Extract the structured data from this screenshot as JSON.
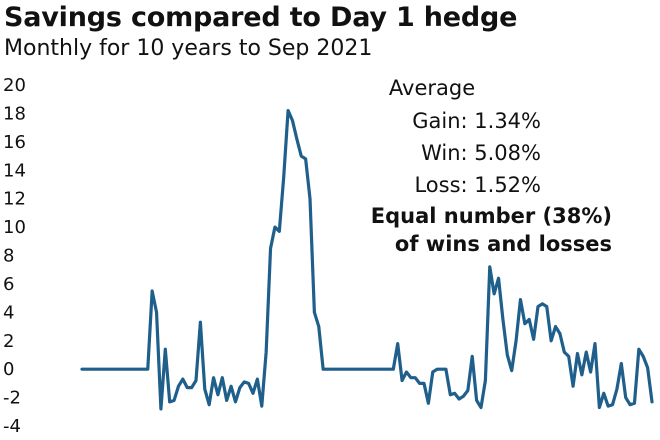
{
  "chart_data": {
    "type": "line",
    "title": "Savings compared to Day 1 hedge",
    "subtitle": "Monthly for 10 years to Sep 2021",
    "xlabel": "",
    "ylabel": "",
    "ylim": [
      -4,
      20
    ],
    "yticks": [
      "20",
      "18",
      "16",
      "14",
      "12",
      "10",
      "8",
      "6",
      "4",
      "2",
      "0",
      "-2",
      "-4"
    ],
    "grid": false,
    "line_color": "#1f5f8b",
    "annotations": {
      "heading": "Average",
      "lines": [
        "Gain: 1.34%",
        "Win: 5.08%",
        "Loss: 1.52%"
      ],
      "note": [
        "Equal number (38%)",
        "of wins and losses"
      ]
    },
    "series": [
      {
        "values": [
          0,
          0,
          0,
          0,
          0,
          0,
          0,
          0,
          0,
          0,
          0,
          0,
          0,
          0,
          0,
          0,
          5.5,
          4,
          -2.8,
          1.4,
          -2.3,
          -2.2,
          -1.2,
          -0.7,
          -1.3,
          -1.3,
          -0.8,
          3.3,
          -1.4,
          -2.5,
          -0.6,
          -1.8,
          -0.6,
          -2.2,
          -1.2,
          -2.3,
          -1.3,
          -0.9,
          -1,
          -1.7,
          -0.7,
          -2.6,
          1.2,
          8.5,
          10,
          9.7,
          13.5,
          18.2,
          17.5,
          16.2,
          15,
          14.8,
          12,
          4,
          3,
          0,
          0,
          0,
          0,
          0,
          0,
          0,
          0,
          0,
          0,
          0,
          0,
          0,
          0,
          0,
          0,
          0,
          1.8,
          -0.8,
          -0.2,
          -0.6,
          -0.6,
          -1,
          -1,
          -2.4,
          -0.2,
          0,
          0,
          0,
          -1.8,
          -1.7,
          -2.1,
          -1.9,
          -1.5,
          0.9,
          -2.2,
          -2.7,
          -0.8,
          7.2,
          5.3,
          6.4,
          3.5,
          1,
          -0.1,
          2,
          4.9,
          3.2,
          3.5,
          2.1,
          4.4,
          4.6,
          4.4,
          2,
          3,
          2.5,
          1.2,
          0.9,
          -1.2,
          1.1,
          -0.4,
          1.2,
          -0.2,
          1.8,
          -2.7,
          -1.7,
          -2.6,
          -2.5,
          -1.4,
          0.4,
          -2,
          -2.5,
          -2.4,
          1.4,
          0.9,
          0.1,
          -2.3
        ]
      }
    ]
  }
}
